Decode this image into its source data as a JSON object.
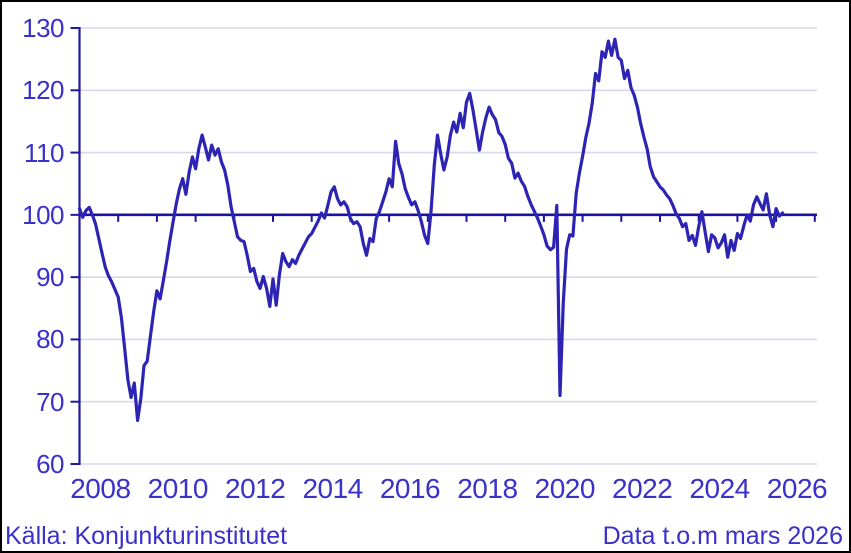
{
  "colors": {
    "background": "#ffffff",
    "frame_border": "#000000",
    "grid": "#d9d7ef",
    "axis": "#211a9e",
    "baseline": "#1c13a3",
    "line": "#2e24b4",
    "text": "#3a31cb"
  },
  "footer": {
    "source": "Källa: Konjunkturinstitutet",
    "note": "Data t.o.m mars 2026"
  },
  "chart_data": {
    "type": "line",
    "title": "",
    "xlabel": "",
    "ylabel": "",
    "frequency": "monthly",
    "x_start": "2008-01",
    "x_end": "2026-03",
    "ylim": [
      60,
      130
    ],
    "y_ticks": [
      60,
      70,
      80,
      90,
      100,
      110,
      120,
      130
    ],
    "x_tick_labels": [
      "2008",
      "2010",
      "2012",
      "2014",
      "2016",
      "2018",
      "2020",
      "2022",
      "2024",
      "2026"
    ],
    "baseline": 100,
    "grid": "horizontal",
    "legend": "none",
    "series": [
      {
        "name": "indicator-index",
        "color": "#2e24b4",
        "values": [
          101.0,
          99.6,
          100.7,
          101.2,
          100.0,
          98.5,
          96.2,
          93.8,
          91.6,
          90.2,
          89.2,
          88.0,
          86.8,
          83.5,
          78.5,
          73.5,
          70.7,
          73.0,
          67.0,
          70.5,
          75.8,
          76.5,
          80.5,
          84.5,
          87.8,
          86.5,
          89.5,
          92.5,
          95.8,
          98.8,
          101.8,
          104.2,
          105.8,
          103.3,
          106.9,
          109.3,
          107.4,
          110.6,
          112.8,
          110.9,
          108.8,
          111.2,
          109.6,
          110.6,
          108.5,
          107.2,
          104.8,
          101.3,
          98.9,
          96.5,
          95.9,
          95.7,
          93.5,
          90.9,
          91.4,
          89.3,
          88.2,
          90.1,
          88.2,
          85.3,
          89.7,
          85.5,
          90.5,
          93.8,
          92.5,
          91.7,
          92.8,
          92.2,
          93.5,
          94.5,
          95.5,
          96.5,
          97.0,
          98.0,
          99.0,
          100.3,
          99.5,
          101.5,
          103.7,
          104.5,
          102.6,
          101.6,
          102.1,
          101.3,
          99.4,
          98.6,
          98.9,
          98.1,
          95.4,
          93.5,
          96.2,
          95.7,
          99.4,
          100.5,
          102.1,
          103.7,
          105.8,
          104.5,
          111.8,
          108.2,
          106.6,
          104.2,
          102.8,
          101.6,
          102.1,
          100.7,
          98.9,
          96.7,
          95.4,
          100.5,
          108.0,
          112.8,
          109.8,
          107.2,
          109.3,
          112.8,
          114.9,
          113.3,
          116.3,
          114.0,
          118.1,
          119.5,
          116.8,
          113.6,
          110.4,
          113.3,
          115.6,
          117.3,
          116.1,
          115.3,
          113.2,
          112.6,
          111.3,
          109.1,
          108.3,
          105.9,
          106.7,
          105.4,
          104.6,
          103.0,
          101.7,
          100.6,
          99.5,
          98.2,
          96.8,
          95.0,
          94.4,
          94.8,
          101.5,
          71.0,
          86.0,
          94.5,
          96.8,
          96.6,
          103.5,
          106.7,
          109.4,
          112.4,
          114.7,
          118.0,
          122.7,
          121.5,
          126.2,
          125.3,
          127.9,
          125.6,
          128.2,
          125.3,
          124.8,
          121.9,
          123.2,
          120.4,
          119.2,
          117.3,
          114.7,
          112.5,
          110.6,
          107.7,
          106.1,
          105.3,
          104.5,
          104.0,
          103.2,
          102.6,
          101.5,
          100.2,
          99.4,
          98.1,
          98.6,
          95.9,
          96.7,
          95.1,
          98.1,
          100.5,
          97.3,
          94.1,
          96.8,
          96.3,
          94.7,
          95.5,
          96.8,
          93.2,
          95.9,
          94.3,
          97.0,
          96.2,
          98.3,
          100.0,
          99.0,
          101.6,
          102.9,
          101.8,
          100.8,
          103.4,
          100.0,
          98.1,
          101.0,
          99.8,
          100.3
        ]
      }
    ]
  }
}
